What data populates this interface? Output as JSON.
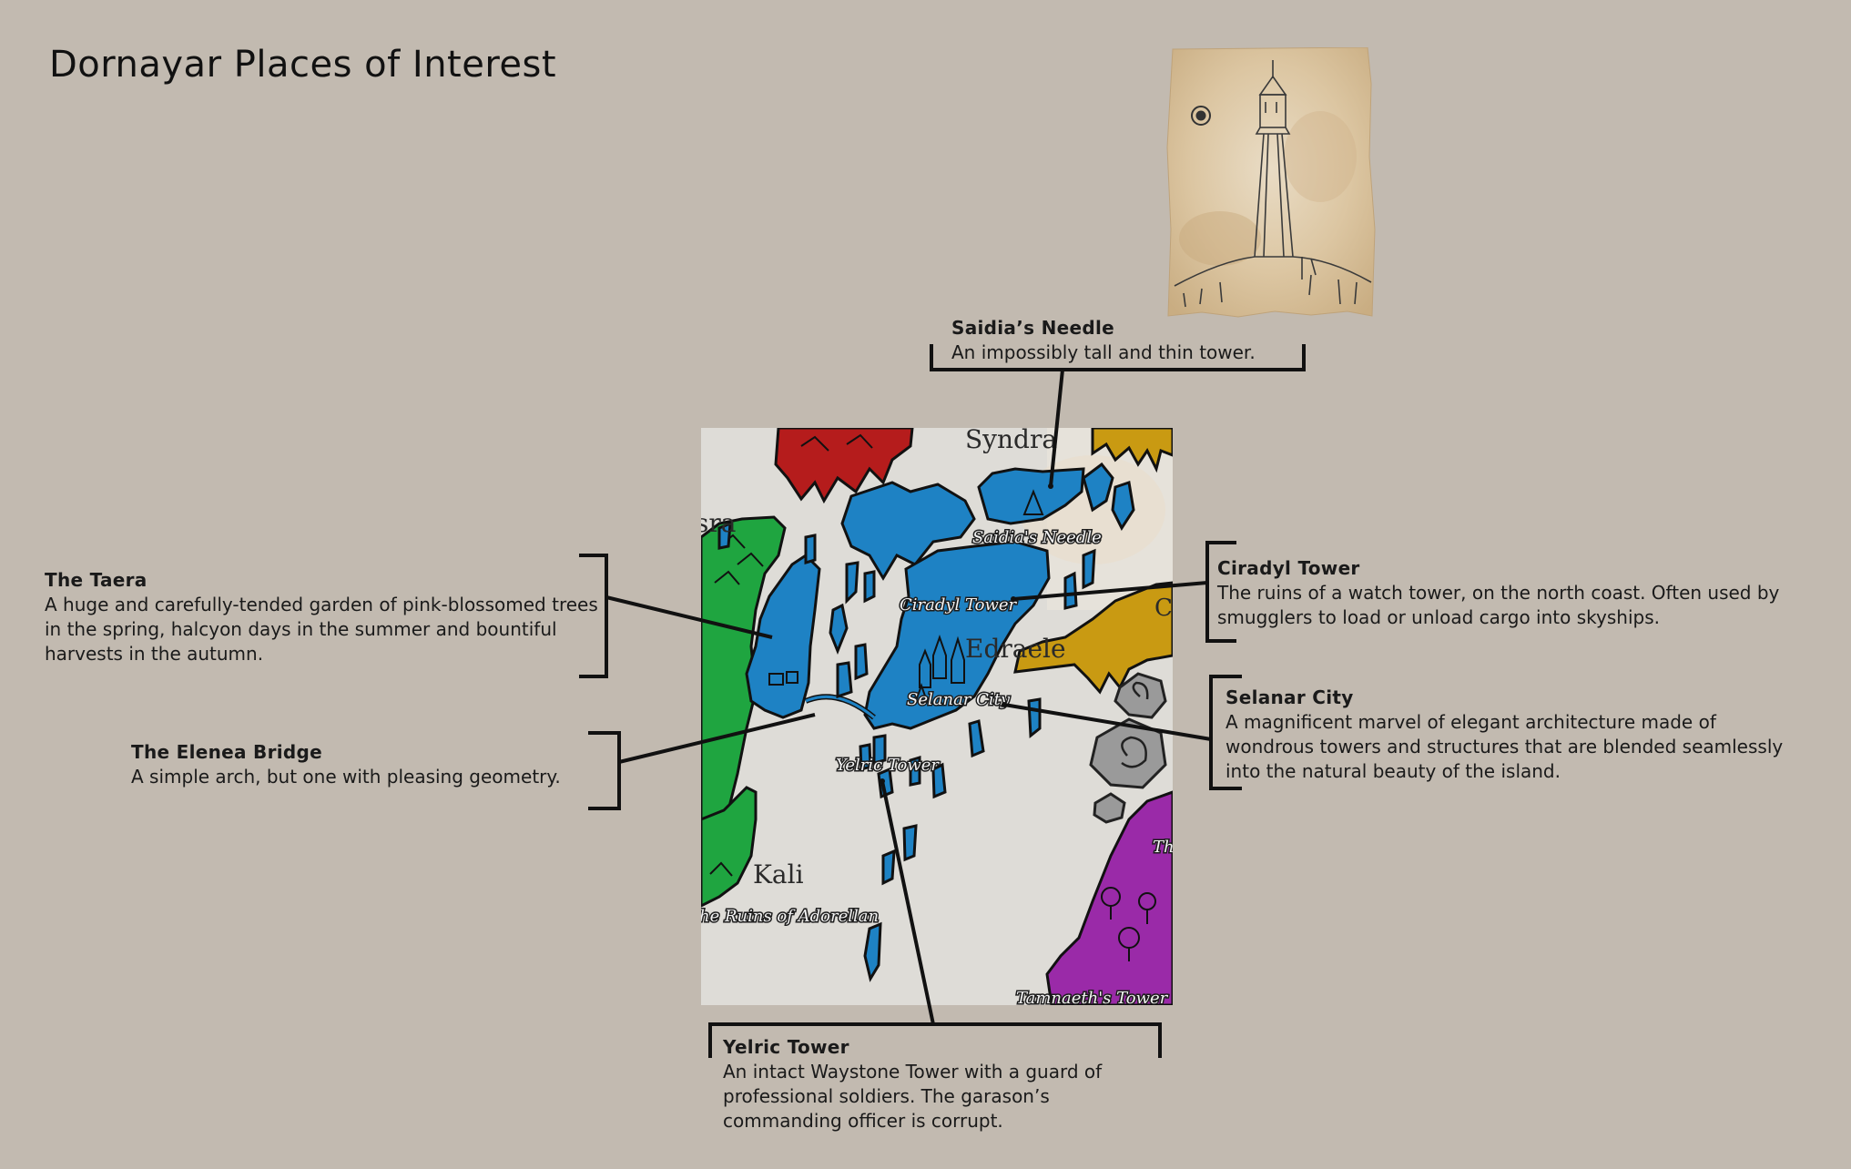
{
  "page": {
    "title": "Dornayar Places of Interest"
  },
  "colors": {
    "background": "#c2bab0",
    "map_paper": "#dedcd7",
    "edraele_blue": "#1e82c4",
    "taera_green": "#1fa540",
    "red_region": "#b51c1c",
    "gold_region": "#c99a12",
    "purple_region": "#9a2aa8",
    "outline": "#111111"
  },
  "map": {
    "labels": {
      "syndra": "Syndra",
      "edraele": "Edraele",
      "kali": "Kali",
      "sra_fragment": "sra",
      "c_fragment": "C",
      "th_fragment": "Th",
      "saidias_needle": "Saidia's Needle",
      "ciradyl_tower": "Ciradyl Tower",
      "selanar_city": "Selanar City",
      "yelric_tower": "Yelric Tower",
      "ruins_of_adorellan": "The Ruins of Adorellan",
      "tamnaeths_tower": "Tamnaeth's Tower"
    }
  },
  "places": [
    {
      "id": "saidias-needle",
      "name": "Saidia’s Needle",
      "description": "An impossibly tall and thin tower."
    },
    {
      "id": "the-taera",
      "name": "The Taera",
      "description": "A huge and carefully-tended garden of pink-blossomed trees in the spring, halcyon days in the summer and bountiful harvests in the autumn."
    },
    {
      "id": "ciradyl-tower",
      "name": "Ciradyl Tower",
      "description": "The ruins of a watch tower, on the north coast. Often used by smugglers to load or unload cargo into skyships."
    },
    {
      "id": "the-elenea-bridge",
      "name": "The Elenea Bridge",
      "description": "A simple arch, but one with pleasing geometry."
    },
    {
      "id": "selanar-city",
      "name": "Selanar City",
      "description": "A magnificent marvel of elegant architecture made of wondrous towers and structures that are blended seamlessly into the natural beauty of the island."
    },
    {
      "id": "yelric-tower",
      "name": "Yelric Tower",
      "description": "An intact Waystone Tower with a guard of professional soldiers. The garason’s commanding officer is corrupt."
    }
  ]
}
